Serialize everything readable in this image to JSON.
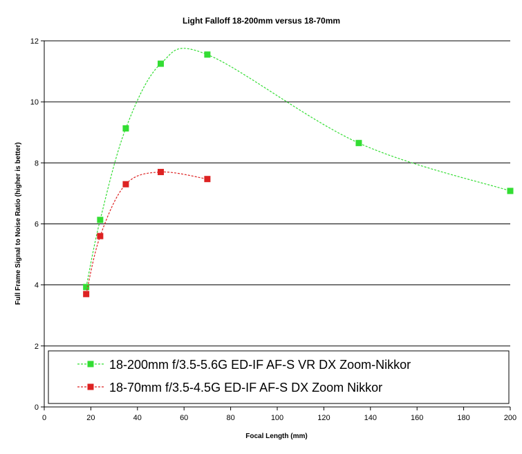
{
  "chart_data": {
    "type": "line",
    "title": "Light Falloff 18-200mm versus 18-70mm",
    "xlabel": "Focal Length (mm)",
    "ylabel": "Full Frame Signal to Noise Ratio (higher is better)",
    "xlim": [
      0,
      200
    ],
    "ylim": [
      0,
      12
    ],
    "xticks": [
      0,
      20,
      40,
      60,
      80,
      100,
      120,
      140,
      160,
      180,
      200
    ],
    "yticks": [
      0,
      2,
      4,
      6,
      8,
      10,
      12
    ],
    "grid": "horizontal",
    "legend_position": "bottom",
    "series": [
      {
        "name": "18-200mm f/3.5-5.6G ED-IF AF-S VR DX Zoom-Nikkor",
        "color": "#33dd33",
        "x": [
          18,
          24,
          35,
          50,
          70,
          135,
          200
        ],
        "y": [
          3.93,
          6.13,
          9.13,
          11.25,
          11.55,
          8.65,
          7.08
        ]
      },
      {
        "name": "18-70mm f/3.5-4.5G ED-IF AF-S DX Zoom Nikkor",
        "color": "#dd2222",
        "x": [
          18,
          24,
          35,
          50,
          70
        ],
        "y": [
          3.7,
          5.6,
          7.3,
          7.7,
          7.47
        ]
      }
    ]
  }
}
